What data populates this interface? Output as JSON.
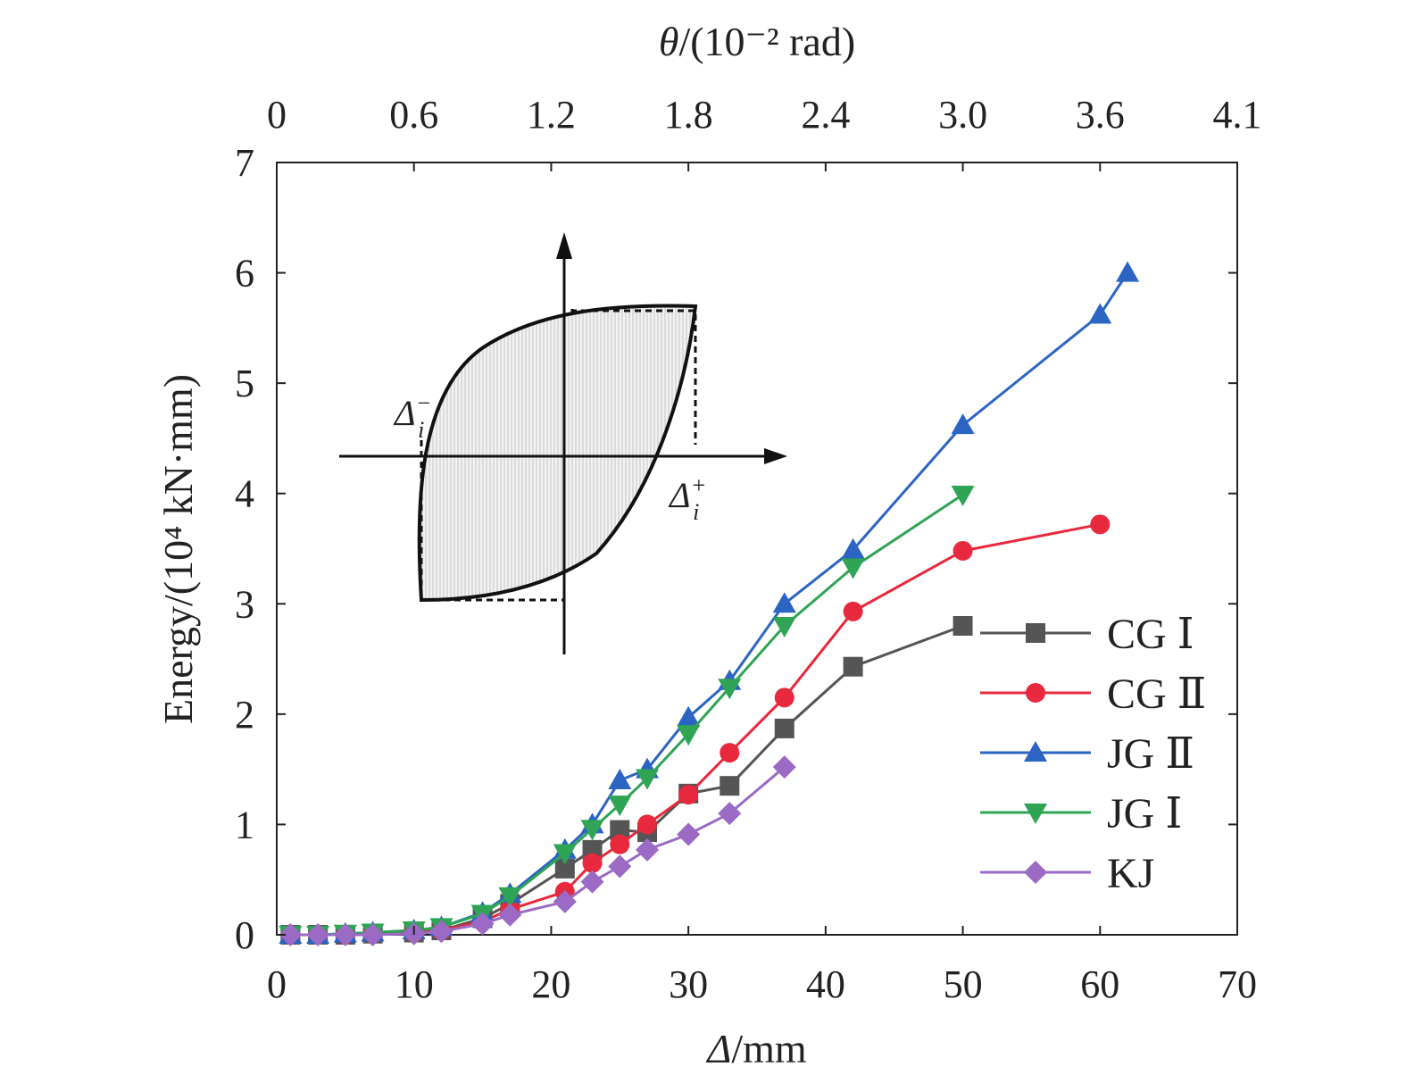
{
  "chart_data": {
    "type": "line",
    "xlabel_italic": "Δ",
    "xlabel_rest": "/mm",
    "ylabel": "Energy/(10⁴ kN·mm)",
    "top_xlabel_italic": "θ",
    "top_xlabel_rest": "/(10⁻² rad)",
    "xlim": [
      0,
      70
    ],
    "ylim": [
      0,
      7
    ],
    "x_ticks": [
      0,
      10,
      20,
      30,
      40,
      50,
      60,
      70
    ],
    "y_ticks": [
      0,
      1,
      2,
      3,
      4,
      5,
      6,
      7
    ],
    "x_tick_labels": [
      "0",
      "10",
      "20",
      "30",
      "40",
      "50",
      "60",
      "70"
    ],
    "y_tick_labels": [
      "0",
      "1",
      "2",
      "3",
      "4",
      "5",
      "6",
      "7"
    ],
    "top_ticks": [
      {
        "x": 0,
        "label": "0"
      },
      {
        "x": 10,
        "label": "0.6"
      },
      {
        "x": 20,
        "label": "1.2"
      },
      {
        "x": 30,
        "label": "1.8"
      },
      {
        "x": 40,
        "label": "2.4"
      },
      {
        "x": 50,
        "label": "3.0"
      },
      {
        "x": 60,
        "label": "3.6"
      },
      {
        "x": 70,
        "label": "4.1"
      }
    ],
    "grid": false,
    "legend_position": "bottom-right",
    "series": [
      {
        "name": "CG Ⅰ",
        "color": "#555555",
        "marker": "square",
        "x": [
          1,
          3,
          5,
          7,
          10,
          12,
          15,
          17,
          21,
          23,
          25,
          27,
          30,
          33,
          37,
          42,
          50
        ],
        "y": [
          0.0,
          0.0,
          0.0,
          0.01,
          0.02,
          0.04,
          0.15,
          0.28,
          0.6,
          0.77,
          0.95,
          0.93,
          1.28,
          1.35,
          1.87,
          2.43,
          2.8
        ]
      },
      {
        "name": "CG Ⅱ",
        "color": "#e8283c",
        "marker": "circle",
        "x": [
          1,
          3,
          5,
          7,
          10,
          12,
          15,
          17,
          21,
          23,
          25,
          27,
          30,
          33,
          37,
          42,
          50,
          60
        ],
        "y": [
          0.0,
          0.0,
          0.0,
          0.01,
          0.02,
          0.04,
          0.12,
          0.23,
          0.39,
          0.65,
          0.82,
          1.0,
          1.27,
          1.65,
          2.15,
          2.93,
          3.48,
          3.72
        ]
      },
      {
        "name": "JG Ⅱ",
        "color": "#2c64c4",
        "marker": "triangle-up",
        "x": [
          1,
          3,
          5,
          7,
          10,
          12,
          15,
          17,
          21,
          23,
          25,
          27,
          30,
          33,
          37,
          42,
          50,
          60,
          62
        ],
        "y": [
          0.0,
          0.0,
          0.01,
          0.02,
          0.04,
          0.07,
          0.2,
          0.37,
          0.77,
          1.0,
          1.4,
          1.5,
          1.97,
          2.3,
          3.0,
          3.49,
          4.62,
          5.62,
          6.0
        ]
      },
      {
        "name": "JG Ⅰ",
        "color": "#2ea454",
        "marker": "triangle-down",
        "x": [
          1,
          3,
          5,
          7,
          10,
          12,
          15,
          17,
          21,
          23,
          25,
          27,
          30,
          33,
          37,
          42,
          50
        ],
        "y": [
          0.0,
          0.0,
          0.01,
          0.02,
          0.04,
          0.07,
          0.19,
          0.35,
          0.74,
          0.96,
          1.18,
          1.42,
          1.82,
          2.24,
          2.8,
          3.33,
          3.99
        ]
      },
      {
        "name": "KJ",
        "color": "#9a6ac4",
        "marker": "diamond",
        "x": [
          1,
          3,
          5,
          7,
          10,
          12,
          15,
          17,
          21,
          23,
          25,
          27,
          30,
          33,
          37
        ],
        "y": [
          0.0,
          0.0,
          0.0,
          0.0,
          0.01,
          0.03,
          0.1,
          0.18,
          0.3,
          0.48,
          0.62,
          0.77,
          0.91,
          1.1,
          1.52
        ]
      }
    ],
    "inset": {
      "label_minus_main": "Δ",
      "label_minus_sub": "i",
      "label_minus_sup": "−",
      "label_plus_main": "Δ",
      "label_plus_sub": "i",
      "label_plus_sup": "+"
    }
  }
}
